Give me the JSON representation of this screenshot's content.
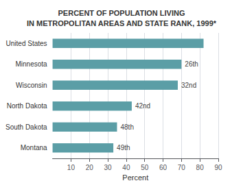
{
  "chart_data": {
    "type": "bar",
    "orientation": "horizontal",
    "title": "PERCENT OF POPULATION LIVING\nIN METROPOLITAN AREAS AND STATE RANK, 1999*",
    "categories": [
      "United States",
      "Minnesota",
      "Wisconsin",
      "North Dakota",
      "South Dakota",
      "Montana"
    ],
    "values": [
      82,
      70,
      68,
      43,
      35,
      33
    ],
    "annotations": [
      null,
      "26th",
      "32nd",
      "42nd",
      "48th",
      "49th"
    ],
    "color": "#5b9ea6",
    "xlabel": "Percent",
    "xlim": [
      0,
      90
    ],
    "xticks": [
      10,
      20,
      30,
      40,
      50,
      60,
      70,
      80,
      90
    ],
    "grid": true
  }
}
